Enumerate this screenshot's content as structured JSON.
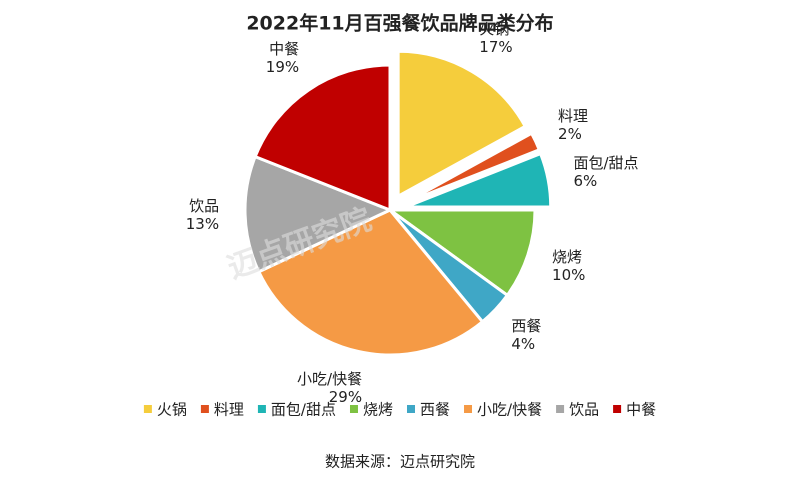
{
  "chart_data": {
    "type": "pie",
    "title": "2022年11月百强餐饮品牌品类分布",
    "categories": [
      "火锅",
      "料理",
      "面包/甜点",
      "烧烤",
      "西餐",
      "小吃/快餐",
      "饮品",
      "中餐"
    ],
    "values": [
      17,
      2,
      6,
      10,
      4,
      29,
      13,
      19
    ],
    "value_labels": [
      "17%",
      "2%",
      "6%",
      "10%",
      "4%",
      "29%",
      "13%",
      "19%"
    ],
    "colors": [
      "#f5cd3c",
      "#e0501e",
      "#1fb5b5",
      "#7ec242",
      "#3fa7c6",
      "#f59a45",
      "#a6a6a6",
      "#c00000"
    ],
    "exploded": [
      true,
      true,
      true,
      false,
      false,
      false,
      false,
      false
    ],
    "legend": "bottom",
    "watermark": "迈点研究院",
    "source": "数据来源：迈点研究院"
  }
}
